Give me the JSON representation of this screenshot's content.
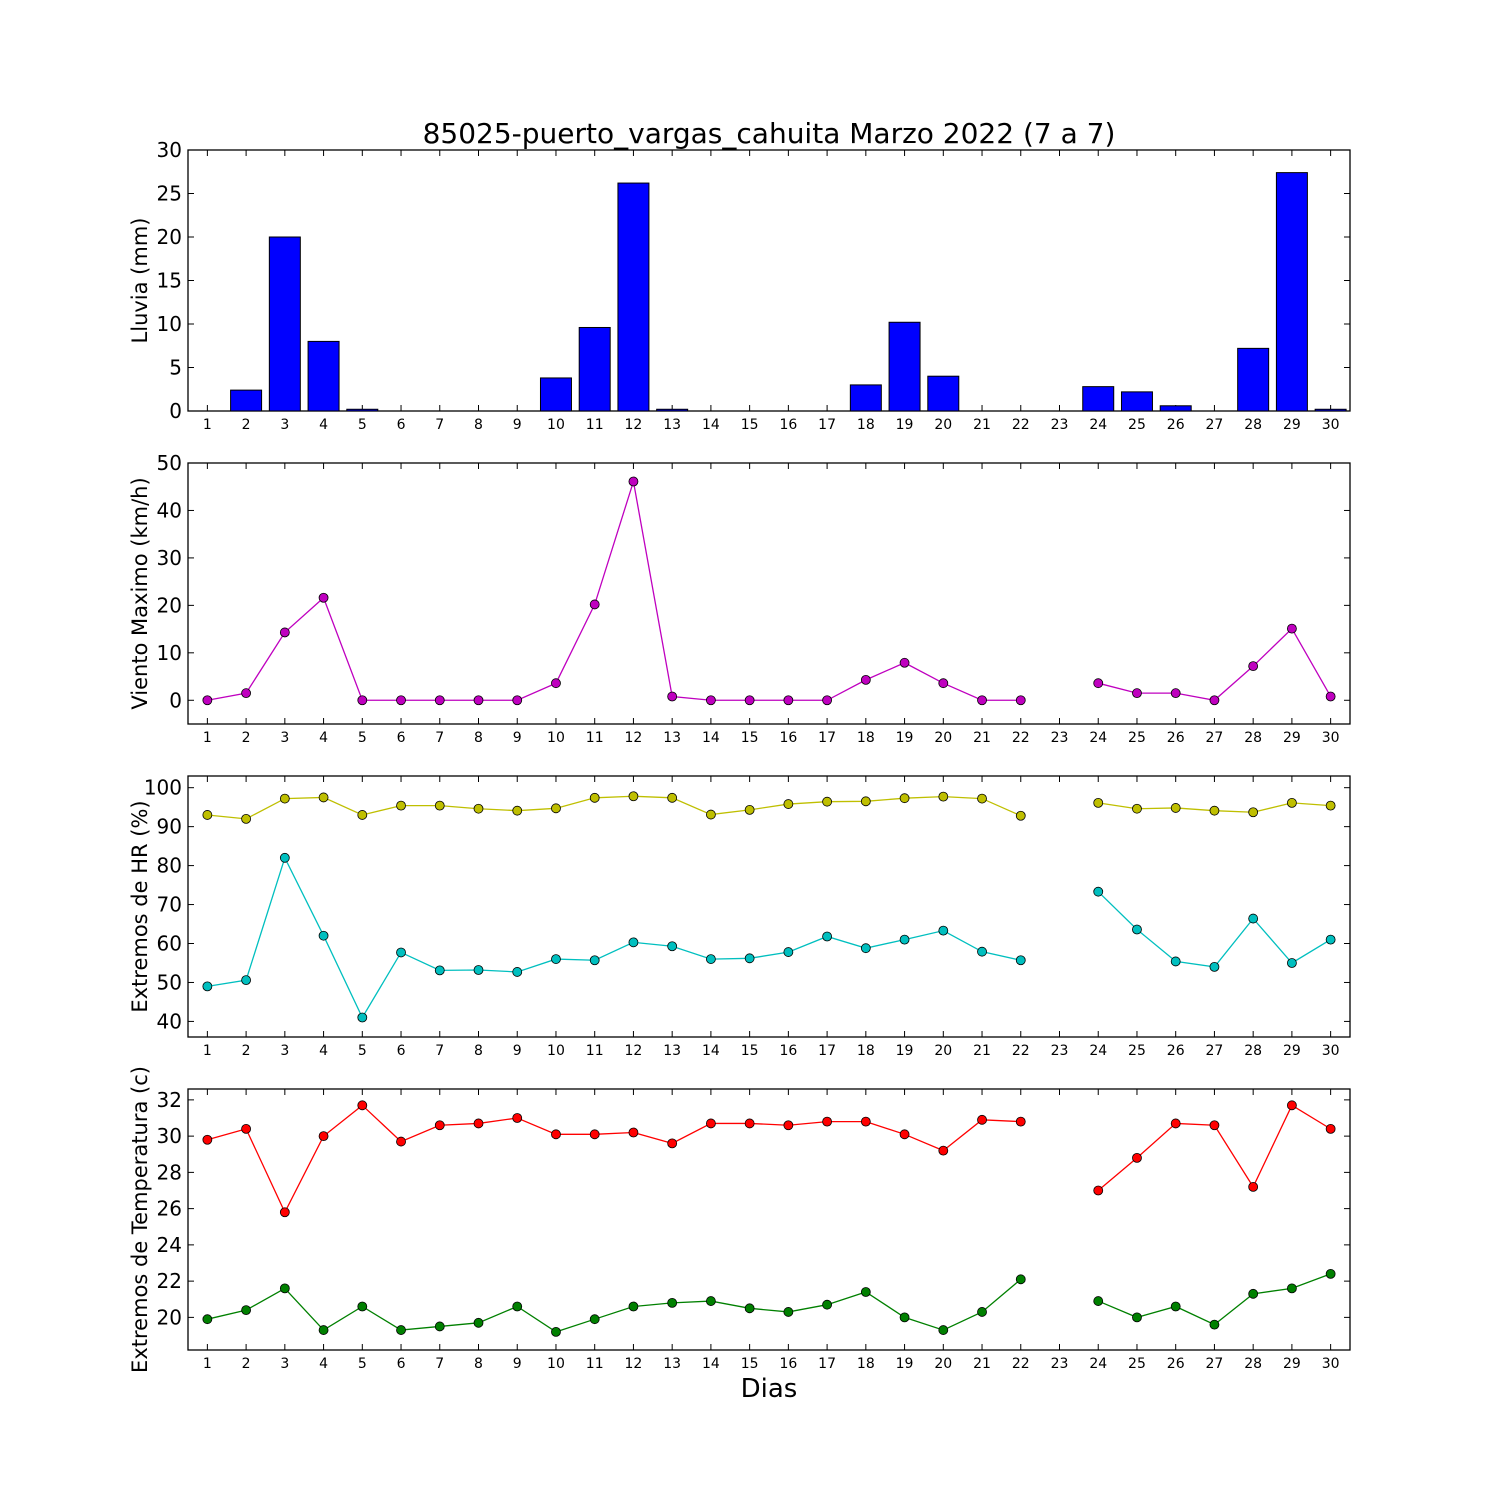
{
  "title": "85025-puerto_vargas_cahuita Marzo 2022  (7 a 7)",
  "xlabel": "Dias",
  "x_tick_labels": [
    "1",
    "2",
    "3",
    "4",
    "5",
    "6",
    "7",
    "8",
    "9",
    "10",
    "11",
    "12",
    "13",
    "14",
    "15",
    "16",
    "17",
    "18",
    "19",
    "20",
    "21",
    "22",
    "23",
    "24",
    "25",
    "26",
    "27",
    "28",
    "29",
    "30"
  ],
  "chart_data": [
    {
      "type": "bar",
      "ylabel": "Lluvia (mm)",
      "ylim": [
        0,
        30
      ],
      "yticks": [
        0,
        5,
        10,
        15,
        20,
        25,
        30
      ],
      "x": [
        1,
        2,
        3,
        4,
        5,
        6,
        7,
        8,
        9,
        10,
        11,
        12,
        13,
        14,
        15,
        16,
        17,
        18,
        19,
        20,
        21,
        22,
        23,
        24,
        25,
        26,
        27,
        28,
        29,
        30
      ],
      "values": [
        0,
        2.4,
        20.0,
        8.0,
        0.2,
        0,
        0,
        0,
        0,
        3.8,
        9.6,
        26.2,
        0.2,
        0,
        0,
        0,
        0,
        3.0,
        10.2,
        4.0,
        0,
        0,
        0,
        2.8,
        2.2,
        0.6,
        0,
        7.2,
        27.4,
        0.2
      ],
      "color": "#0000ff"
    },
    {
      "type": "line",
      "ylabel": "Viento Maximo (km/h)",
      "ylim": [
        -5,
        50
      ],
      "yticks": [
        0,
        10,
        20,
        30,
        40,
        50
      ],
      "series": [
        {
          "color": "#bf00bf",
          "x": [
            1,
            2,
            3,
            4,
            5,
            6,
            7,
            8,
            9,
            10,
            11,
            12,
            13,
            14,
            15,
            16,
            17,
            18,
            19,
            20,
            21,
            22,
            23,
            24,
            25,
            26,
            27,
            28,
            29,
            30
          ],
          "values": [
            0,
            1.5,
            14.3,
            21.6,
            0,
            0,
            0,
            0,
            0,
            3.6,
            20.2,
            46.1,
            0.8,
            0,
            0,
            0,
            0,
            4.3,
            7.9,
            3.6,
            0,
            0,
            null,
            3.6,
            1.5,
            1.5,
            0,
            7.2,
            15.1,
            0.8
          ]
        }
      ]
    },
    {
      "type": "line",
      "ylabel": "Extremos de HR (%)",
      "ylim": [
        36,
        103
      ],
      "yticks": [
        40,
        50,
        60,
        70,
        80,
        90,
        100
      ],
      "series": [
        {
          "color": "#bfbf00",
          "x": [
            1,
            2,
            3,
            4,
            5,
            6,
            7,
            8,
            9,
            10,
            11,
            12,
            13,
            14,
            15,
            16,
            17,
            18,
            19,
            20,
            21,
            22,
            23,
            24,
            25,
            26,
            27,
            28,
            29,
            30
          ],
          "values": [
            93,
            92,
            97.2,
            97.5,
            93,
            95.4,
            95.4,
            94.6,
            94.1,
            94.7,
            97.4,
            97.8,
            97.4,
            93.1,
            94.3,
            95.8,
            96.4,
            96.5,
            97.3,
            97.7,
            97.2,
            92.8,
            null,
            96.1,
            94.6,
            94.8,
            94.1,
            93.7,
            96.1,
            95.4
          ]
        },
        {
          "color": "#00bfbf",
          "x": [
            1,
            2,
            3,
            4,
            5,
            6,
            7,
            8,
            9,
            10,
            11,
            12,
            13,
            14,
            15,
            16,
            17,
            18,
            19,
            20,
            21,
            22,
            23,
            24,
            25,
            26,
            27,
            28,
            29,
            30
          ],
          "values": [
            49,
            50.6,
            82,
            62,
            41,
            57.7,
            53.1,
            53.2,
            52.7,
            56,
            55.7,
            60.3,
            59.3,
            56,
            56.2,
            57.8,
            61.8,
            58.8,
            61,
            63.3,
            57.9,
            55.7,
            null,
            73.3,
            63.6,
            55.4,
            54,
            66.4,
            55,
            61
          ]
        }
      ]
    },
    {
      "type": "line",
      "ylabel": "Extremos de Temperatura (c)",
      "ylim": [
        18.2,
        32.6
      ],
      "yticks": [
        20,
        22,
        24,
        26,
        28,
        30,
        32
      ],
      "series": [
        {
          "color": "#ff0000",
          "x": [
            1,
            2,
            3,
            4,
            5,
            6,
            7,
            8,
            9,
            10,
            11,
            12,
            13,
            14,
            15,
            16,
            17,
            18,
            19,
            20,
            21,
            22,
            23,
            24,
            25,
            26,
            27,
            28,
            29,
            30
          ],
          "values": [
            29.8,
            30.4,
            25.8,
            30,
            31.7,
            29.7,
            30.6,
            30.7,
            31,
            30.1,
            30.1,
            30.2,
            29.6,
            30.7,
            30.7,
            30.6,
            30.8,
            30.8,
            30.1,
            29.2,
            30.9,
            30.8,
            null,
            27,
            28.8,
            30.7,
            30.6,
            27.2,
            31.7,
            30.4
          ]
        },
        {
          "color": "#008000",
          "x": [
            1,
            2,
            3,
            4,
            5,
            6,
            7,
            8,
            9,
            10,
            11,
            12,
            13,
            14,
            15,
            16,
            17,
            18,
            19,
            20,
            21,
            22,
            23,
            24,
            25,
            26,
            27,
            28,
            29,
            30
          ],
          "values": [
            19.9,
            20.4,
            21.6,
            19.3,
            20.6,
            19.3,
            19.5,
            19.7,
            20.6,
            19.2,
            19.9,
            20.6,
            20.8,
            20.9,
            20.5,
            20.3,
            20.7,
            21.4,
            20,
            19.3,
            20.3,
            22.1,
            null,
            20.9,
            20,
            20.6,
            19.6,
            21.3,
            21.6,
            22.4
          ]
        }
      ]
    }
  ]
}
